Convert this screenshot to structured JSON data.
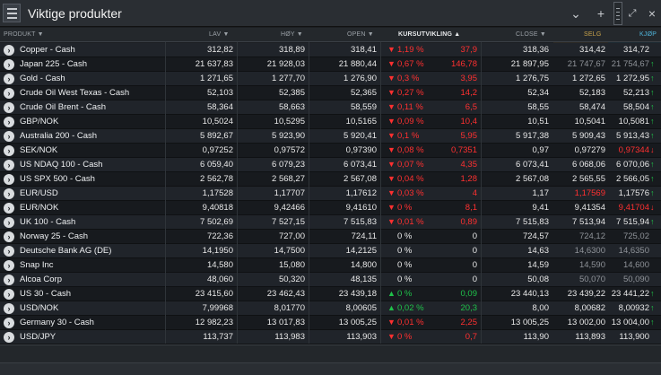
{
  "window": {
    "title": "Viktige produkter"
  },
  "headers": {
    "product": "PRODUKT ▼",
    "low": "LAV ▼",
    "high": "HØY ▼",
    "open": "OPEN ▼",
    "change": "KURSUTVIKLING ▲",
    "close": "CLOSE ▼",
    "sell": "SELG",
    "buy": "KJØP"
  },
  "rows": [
    {
      "name": "Copper - Cash",
      "low": "312,82",
      "high": "318,89",
      "open": "318,41",
      "dir": "down",
      "pct": "1,19 %",
      "abs": "37,9",
      "close": "318,36",
      "sell": "314,42",
      "buy": "314,72",
      "sell_dim": false,
      "buy_dim": false,
      "tick": ""
    },
    {
      "name": "Japan 225 - Cash",
      "low": "21 637,83",
      "high": "21 928,03",
      "open": "21 880,44",
      "dir": "down",
      "pct": "0,67 %",
      "abs": "146,78",
      "close": "21 897,95",
      "sell": "21 747,67",
      "buy": "21 754,67",
      "sell_dim": true,
      "buy_dim": true,
      "tick": "up"
    },
    {
      "name": "Gold - Cash",
      "low": "1 271,65",
      "high": "1 277,70",
      "open": "1 276,90",
      "dir": "down",
      "pct": "0,3 %",
      "abs": "3,95",
      "close": "1 276,75",
      "sell": "1 272,65",
      "buy": "1 272,95",
      "sell_dim": false,
      "buy_dim": false,
      "tick": "up"
    },
    {
      "name": "Crude Oil West Texas - Cash",
      "low": "52,103",
      "high": "52,385",
      "open": "52,365",
      "dir": "down",
      "pct": "0,27 %",
      "abs": "14,2",
      "close": "52,34",
      "sell": "52,183",
      "buy": "52,213",
      "sell_dim": false,
      "buy_dim": false,
      "tick": "up"
    },
    {
      "name": "Crude Oil Brent - Cash",
      "low": "58,364",
      "high": "58,663",
      "open": "58,559",
      "dir": "down",
      "pct": "0,11 %",
      "abs": "6,5",
      "close": "58,55",
      "sell": "58,474",
      "buy": "58,504",
      "sell_dim": false,
      "buy_dim": false,
      "tick": "up"
    },
    {
      "name": "GBP/NOK",
      "low": "10,5024",
      "high": "10,5295",
      "open": "10,5165",
      "dir": "down",
      "pct": "0,09 %",
      "abs": "10,4",
      "close": "10,51",
      "sell": "10,5041",
      "buy": "10,5081",
      "sell_dim": false,
      "buy_dim": false,
      "tick": "up"
    },
    {
      "name": "Australia 200 - Cash",
      "low": "5 892,67",
      "high": "5 923,90",
      "open": "5 920,41",
      "dir": "down",
      "pct": "0,1 %",
      "abs": "5,95",
      "close": "5 917,38",
      "sell": "5 909,43",
      "buy": "5 913,43",
      "sell_dim": false,
      "buy_dim": false,
      "tick": "up"
    },
    {
      "name": "SEK/NOK",
      "low": "0,97252",
      "high": "0,97572",
      "open": "0,97390",
      "dir": "down",
      "pct": "0,08 %",
      "abs": "0,7351",
      "close": "0,97",
      "sell": "0,97279",
      "buy": "0,97344",
      "sell_dim": false,
      "buy_dim": false,
      "buy_red": true,
      "tick": "down"
    },
    {
      "name": "US NDAQ 100 - Cash",
      "low": "6 059,40",
      "high": "6 079,23",
      "open": "6 073,41",
      "dir": "down",
      "pct": "0,07 %",
      "abs": "4,35",
      "close": "6 073,41",
      "sell": "6 068,06",
      "buy": "6 070,06",
      "sell_dim": false,
      "buy_dim": false,
      "tick": "up"
    },
    {
      "name": "US SPX 500 - Cash",
      "low": "2 562,78",
      "high": "2 568,27",
      "open": "2 567,08",
      "dir": "down",
      "pct": "0,04 %",
      "abs": "1,28",
      "close": "2 567,08",
      "sell": "2 565,55",
      "buy": "2 566,05",
      "sell_dim": false,
      "buy_dim": false,
      "tick": "up"
    },
    {
      "name": "EUR/USD",
      "low": "1,17528",
      "high": "1,17707",
      "open": "1,17612",
      "dir": "down",
      "pct": "0,03 %",
      "abs": "4",
      "close": "1,17",
      "sell": "1,17569",
      "buy": "1,17576",
      "sell_dim": false,
      "sell_red": true,
      "buy_dim": false,
      "tick": "up"
    },
    {
      "name": "EUR/NOK",
      "low": "9,40818",
      "high": "9,42466",
      "open": "9,41610",
      "dir": "down",
      "pct": "0 %",
      "abs": "8,1",
      "close": "9,41",
      "sell": "9,41354",
      "buy": "9,41704",
      "sell_dim": false,
      "buy_dim": false,
      "buy_red": true,
      "tick": "down"
    },
    {
      "name": "UK 100 - Cash",
      "low": "7 502,69",
      "high": "7 527,15",
      "open": "7 515,83",
      "dir": "down",
      "pct": "0,01 %",
      "abs": "0,89",
      "close": "7 515,83",
      "sell": "7 513,94",
      "buy": "7 515,94",
      "sell_dim": false,
      "buy_dim": false,
      "tick": "up"
    },
    {
      "name": "Norway 25 - Cash",
      "low": "722,36",
      "high": "727,00",
      "open": "724,11",
      "dir": "none",
      "pct": "0 %",
      "abs": "0",
      "close": "724,57",
      "sell": "724,12",
      "buy": "725,02",
      "sell_dim": true,
      "buy_dim": true,
      "tick": ""
    },
    {
      "name": "Deutsche Bank AG (DE)",
      "low": "14,1950",
      "high": "14,7500",
      "open": "14,2125",
      "dir": "none",
      "pct": "0 %",
      "abs": "0",
      "close": "14,63",
      "sell": "14,6300",
      "buy": "14,6350",
      "sell_dim": true,
      "buy_dim": true,
      "tick": ""
    },
    {
      "name": "Snap Inc",
      "low": "14,580",
      "high": "15,080",
      "open": "14,800",
      "dir": "none",
      "pct": "0 %",
      "abs": "0",
      "close": "14,59",
      "sell": "14,590",
      "buy": "14,600",
      "sell_dim": true,
      "buy_dim": true,
      "tick": ""
    },
    {
      "name": "Alcoa Corp",
      "low": "48,060",
      "high": "50,320",
      "open": "48,135",
      "dir": "none",
      "pct": "0 %",
      "abs": "0",
      "close": "50,08",
      "sell": "50,070",
      "buy": "50,090",
      "sell_dim": true,
      "buy_dim": true,
      "tick": ""
    },
    {
      "name": "US 30 - Cash",
      "low": "23 415,60",
      "high": "23 462,43",
      "open": "23 439,18",
      "dir": "up",
      "pct": "0 %",
      "abs": "0,09",
      "close": "23 440,13",
      "sell": "23 439,22",
      "buy": "23 441,22",
      "sell_dim": false,
      "buy_dim": false,
      "tick": "up"
    },
    {
      "name": "USD/NOK",
      "low": "7,99968",
      "high": "8,01770",
      "open": "8,00605",
      "dir": "up",
      "pct": "0,02 %",
      "abs": "20,3",
      "close": "8,00",
      "sell": "8,00682",
      "buy": "8,00932",
      "sell_dim": false,
      "buy_dim": false,
      "tick": "up"
    },
    {
      "name": "Germany 30 - Cash",
      "low": "12 982,23",
      "high": "13 017,83",
      "open": "13 005,25",
      "dir": "down",
      "pct": "0,01 %",
      "abs": "2,25",
      "close": "13 005,25",
      "sell": "13 002,00",
      "buy": "13 004,00",
      "sell_dim": false,
      "buy_dim": false,
      "tick": "up"
    },
    {
      "name": "USD/JPY",
      "low": "113,737",
      "high": "113,983",
      "open": "113,903",
      "dir": "down",
      "pct": "0 %",
      "abs": "0,7",
      "close": "113,90",
      "sell": "113,893",
      "buy": "113,900",
      "sell_dim": false,
      "buy_dim": false,
      "tick": ""
    }
  ],
  "colors": {
    "up": "#1fc24a",
    "down": "#ff3030",
    "sell_bg": "#2b2924",
    "buy_bg": "#1d2a32"
  }
}
